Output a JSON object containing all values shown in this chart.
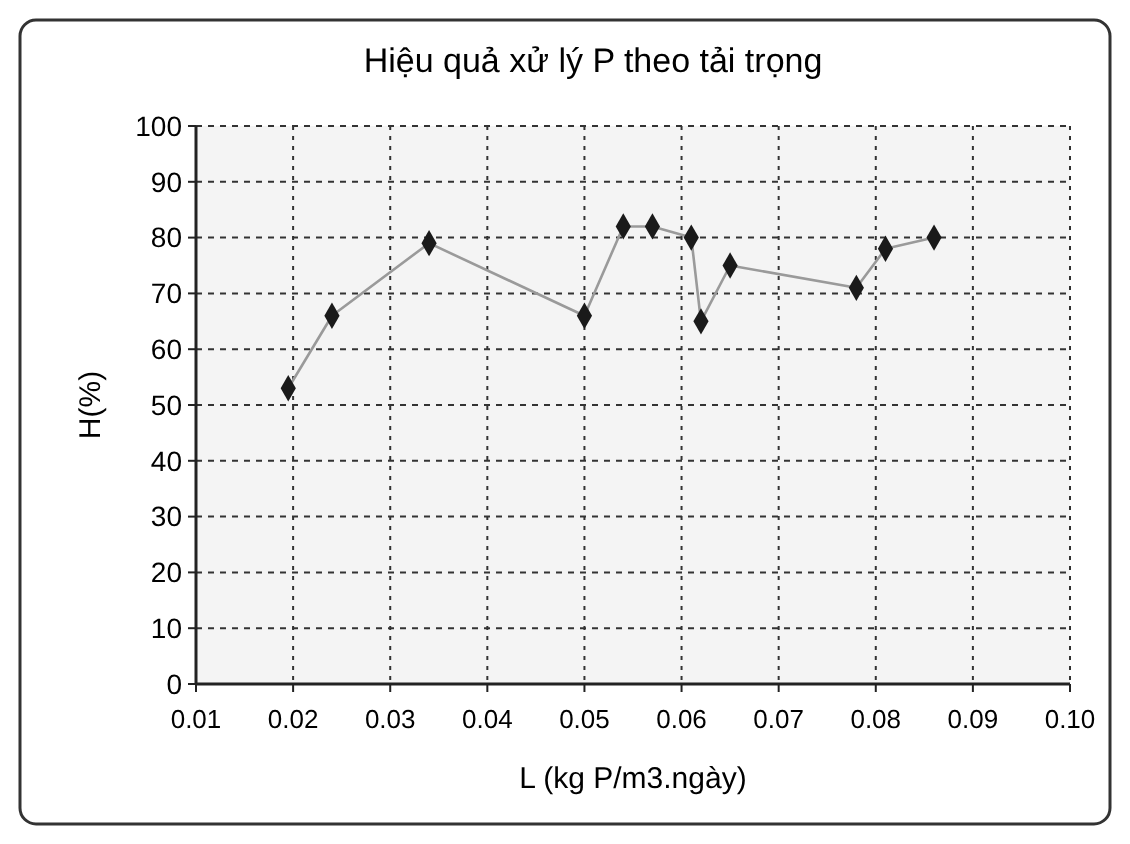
{
  "chart_data": {
    "type": "line",
    "title": "Hiệu quả xử lý P theo tải trọng",
    "xlabel": "L (kg P/m3.ngày)",
    "ylabel": "H(%)",
    "x": [
      0.0195,
      0.024,
      0.034,
      0.05,
      0.054,
      0.057,
      0.061,
      0.062,
      0.065,
      0.078,
      0.081,
      0.086
    ],
    "series": [
      {
        "color": "#1a1a1a",
        "values": [
          53,
          66,
          79,
          66,
          82,
          82,
          80,
          65,
          75,
          71,
          78,
          80
        ]
      }
    ],
    "xlim": [
      0.01,
      0.1
    ],
    "xticks": [
      {
        "value": 0.01,
        "label": "0.01"
      },
      {
        "value": 0.02,
        "label": "0.02"
      },
      {
        "value": 0.03,
        "label": "0.03"
      },
      {
        "value": 0.04,
        "label": "0.04"
      },
      {
        "value": 0.05,
        "label": "0.05"
      },
      {
        "value": 0.06,
        "label": "0.06"
      },
      {
        "value": 0.07,
        "label": "0.07"
      },
      {
        "value": 0.08,
        "label": "0.08"
      },
      {
        "value": 0.09,
        "label": "0.09"
      },
      {
        "value": 0.1,
        "label": "0.10"
      }
    ],
    "ylim": [
      0,
      100
    ],
    "yticks": [
      0,
      10,
      20,
      30,
      40,
      50,
      60,
      70,
      80,
      90,
      100
    ],
    "grid": true,
    "marker": "diamond",
    "line_style": "solid"
  }
}
